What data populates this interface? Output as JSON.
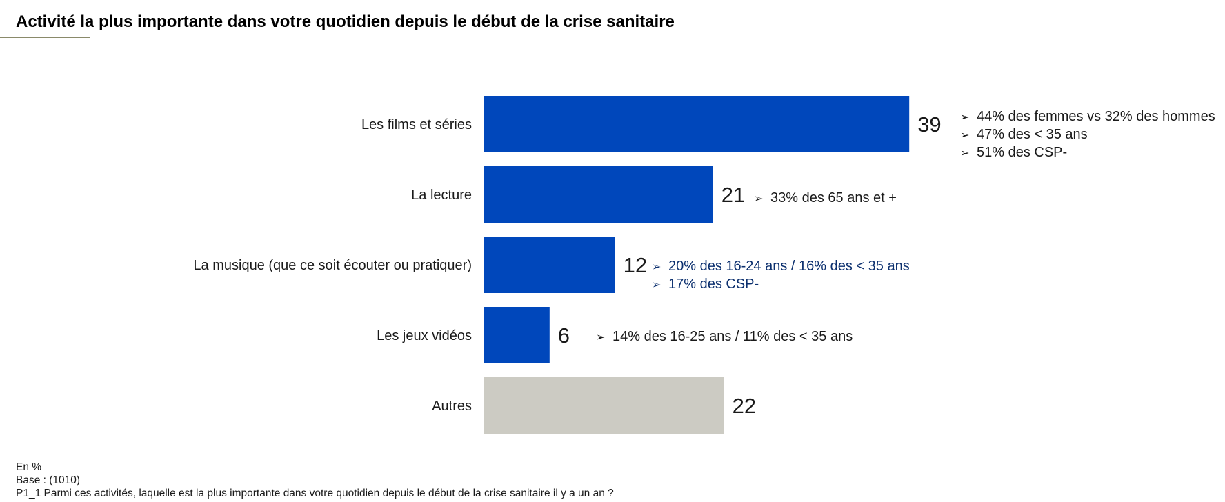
{
  "title": "Activité la plus importante dans votre quotidien depuis le début de la crise sanitaire",
  "colors": {
    "primary_bar": "#0047bb",
    "other_bar": "#cccbc3",
    "annotation_blue": "#0b2f6e",
    "text_dark": "#1a1a1a"
  },
  "chart_data": {
    "type": "bar",
    "orientation": "horizontal",
    "categories": [
      "Les films et séries",
      "La lecture",
      "La musique (que ce soit écouter ou pratiquer)",
      "Les jeux vidéos",
      "Autres"
    ],
    "values": [
      39,
      21,
      12,
      6,
      22
    ],
    "value_labels": [
      "39",
      "21",
      "12",
      "6",
      "22"
    ],
    "bar_colors": [
      "#0047bb",
      "#0047bb",
      "#0047bb",
      "#0047bb",
      "#cccbc3"
    ],
    "unit": "En %",
    "grid": false
  },
  "annotations": [
    {
      "style": "dark",
      "lines": [
        "44% des femmes vs 32% des hommes",
        "47% des < 35 ans",
        "51% des CSP-"
      ]
    },
    {
      "style": "dark",
      "lines": [
        "33% des 65 ans et +"
      ]
    },
    {
      "style": "blue",
      "lines": [
        "20% des 16-24 ans / 16% des < 35 ans",
        "17% des CSP-"
      ]
    },
    {
      "style": "dark",
      "lines": [
        "14% des 16-25 ans / 11% des < 35 ans"
      ]
    }
  ],
  "footer": {
    "unit": "En %",
    "base": "Base : (1010)",
    "question": "P1_1 Parmi ces activités, laquelle est la plus importante dans votre quotidien depuis le début de la crise sanitaire il y a un an ?"
  }
}
